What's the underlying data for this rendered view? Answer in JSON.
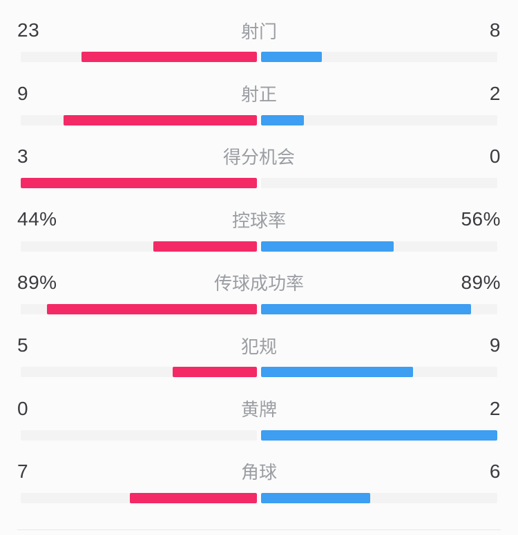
{
  "page": {
    "background": "#fbfbfb",
    "divider_color": "#e7e7e9",
    "track_color": "#f3f3f4"
  },
  "colors": {
    "home": "#f32a66",
    "away": "#3d9ef2",
    "value_text": "#3b3b40",
    "label_text": "#9a9da2"
  },
  "rows": [
    {
      "label": "射门",
      "left": "23",
      "right": "8",
      "left_value": 23,
      "right_value": 8,
      "percent": false
    },
    {
      "label": "射正",
      "left": "9",
      "right": "2",
      "left_value": 9,
      "right_value": 2,
      "percent": false
    },
    {
      "label": "得分机会",
      "left": "3",
      "right": "0",
      "left_value": 3,
      "right_value": 0,
      "percent": false
    },
    {
      "label": "控球率",
      "left": "44%",
      "right": "56%",
      "left_value": 44,
      "right_value": 56,
      "percent": true
    },
    {
      "label": "传球成功率",
      "left": "89%",
      "right": "89%",
      "left_value": 89,
      "right_value": 89,
      "percent": true
    },
    {
      "label": "犯规",
      "left": "5",
      "right": "9",
      "left_value": 5,
      "right_value": 9,
      "percent": false
    },
    {
      "label": "黄牌",
      "left": "0",
      "right": "2",
      "left_value": 0,
      "right_value": 2,
      "percent": false
    },
    {
      "label": "角球",
      "left": "7",
      "right": "6",
      "left_value": 7,
      "right_value": 6,
      "percent": false
    }
  ],
  "chart_data": {
    "type": "bar",
    "variant": "paired-horizontal-diverging-from-center",
    "categories": [
      "射门",
      "射正",
      "得分机会",
      "控球率",
      "传球成功率",
      "犯规",
      "黄牌",
      "角球"
    ],
    "series": [
      {
        "name": "home-pink",
        "color": "#f32a66",
        "values": [
          23,
          9,
          3,
          44,
          89,
          5,
          0,
          7
        ],
        "labels": [
          "23",
          "9",
          "3",
          "44%",
          "89%",
          "5",
          "0",
          "7"
        ]
      },
      {
        "name": "away-blue",
        "color": "#3d9ef2",
        "values": [
          8,
          2,
          0,
          56,
          89,
          9,
          2,
          6
        ],
        "labels": [
          "8",
          "2",
          "0",
          "56%",
          "89%",
          "9",
          "2",
          "6"
        ]
      }
    ],
    "scaling": "count rows: bar length = value / (home+away) of half-track; percent rows: bar length = value/100 of half-track",
    "legend": "none",
    "grid": false
  }
}
